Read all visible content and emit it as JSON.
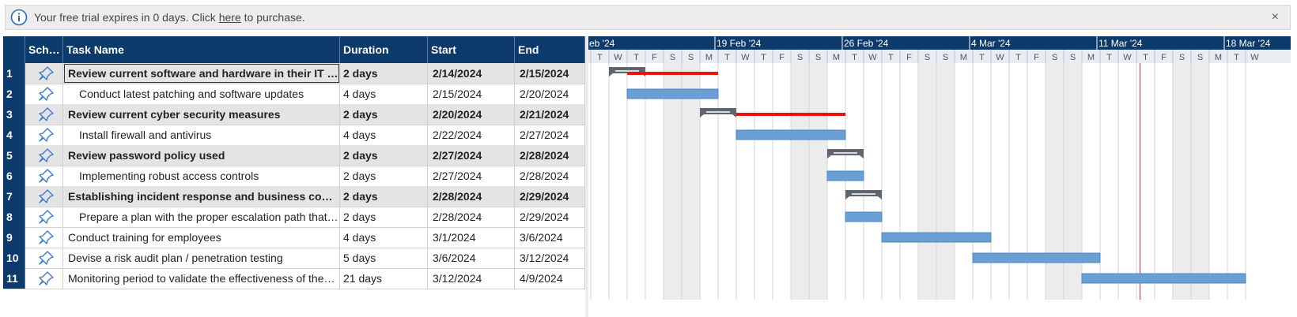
{
  "banner": {
    "text_before": "Your free trial expires in 0 days. Click ",
    "link": "here",
    "text_after": " to purchase.",
    "close": "×"
  },
  "columns": {
    "num": "",
    "sched": "Sch…",
    "name": "Task Name",
    "duration": "Duration",
    "start": "Start",
    "end": "End"
  },
  "tasks": [
    {
      "id": "1",
      "name": "Review current software and hardware in their IT i…",
      "duration": "2 days",
      "start": "2/14/2024",
      "end": "2/15/2024",
      "summary": true
    },
    {
      "id": "2",
      "name": "Conduct latest patching and software updates",
      "duration": "4 days",
      "start": "2/15/2024",
      "end": "2/20/2024",
      "summary": false
    },
    {
      "id": "3",
      "name": "Review current cyber security measures",
      "duration": "2 days",
      "start": "2/20/2024",
      "end": "2/21/2024",
      "summary": true
    },
    {
      "id": "4",
      "name": "Install firewall and antivirus",
      "duration": "4 days",
      "start": "2/22/2024",
      "end": "2/27/2024",
      "summary": false
    },
    {
      "id": "5",
      "name": "Review password policy used",
      "duration": "2 days",
      "start": "2/27/2024",
      "end": "2/28/2024",
      "summary": true
    },
    {
      "id": "6",
      "name": "Implementing robust access controls",
      "duration": "2 days",
      "start": "2/27/2024",
      "end": "2/28/2024",
      "summary": false
    },
    {
      "id": "7",
      "name": "Establishing incident response and business con…",
      "duration": "2 days",
      "start": "2/28/2024",
      "end": "2/29/2024",
      "summary": true
    },
    {
      "id": "8",
      "name": "Prepare a plan with the proper escalation path that…",
      "duration": "2 days",
      "start": "2/28/2024",
      "end": "2/29/2024",
      "summary": false
    },
    {
      "id": "9",
      "name": "Conduct training for employees",
      "duration": "4 days",
      "start": "3/1/2024",
      "end": "3/6/2024",
      "summary": false
    },
    {
      "id": "10",
      "name": "Devise a risk audit plan / penetration testing",
      "duration": "5 days",
      "start": "3/6/2024",
      "end": "3/12/2024",
      "summary": false
    },
    {
      "id": "11",
      "name": "Monitoring period to validate the effectiveness of the…",
      "duration": "21 days",
      "start": "3/12/2024",
      "end": "4/9/2024",
      "summary": false
    }
  ],
  "timeline": {
    "weeks": [
      "eb '24",
      "19 Feb '24",
      "26 Feb '24",
      "4 Mar '24",
      "11 Mar '24",
      "18 Mar '24"
    ],
    "days": [
      "T",
      "W",
      "T",
      "F",
      "S",
      "S",
      "M",
      "T",
      "W",
      "T",
      "F",
      "S",
      "S",
      "M",
      "T",
      "W",
      "T",
      "F",
      "S",
      "S",
      "M",
      "T",
      "W",
      "T",
      "F",
      "S",
      "S",
      "M",
      "T",
      "W",
      "T",
      "F",
      "S",
      "S",
      "M",
      "T",
      "W"
    ],
    "today_day_index": 30.2
  },
  "bars": [
    {
      "row": 0,
      "type": "summary",
      "start": 1,
      "end": 3
    },
    {
      "row": 0,
      "type": "critical",
      "start": 2,
      "end": 7
    },
    {
      "row": 1,
      "type": "task",
      "start": 2,
      "end": 7
    },
    {
      "row": 2,
      "type": "summary",
      "start": 6,
      "end": 8
    },
    {
      "row": 2,
      "type": "critical",
      "start": 8,
      "end": 14
    },
    {
      "row": 3,
      "type": "task",
      "start": 8,
      "end": 14
    },
    {
      "row": 4,
      "type": "summary",
      "start": 13,
      "end": 15
    },
    {
      "row": 5,
      "type": "task",
      "start": 13,
      "end": 15
    },
    {
      "row": 6,
      "type": "summary",
      "start": 14,
      "end": 16
    },
    {
      "row": 7,
      "type": "task",
      "start": 14,
      "end": 16
    },
    {
      "row": 8,
      "type": "task",
      "start": 16,
      "end": 22
    },
    {
      "row": 9,
      "type": "task",
      "start": 21,
      "end": 28
    },
    {
      "row": 10,
      "type": "task",
      "start": 27,
      "end": 36
    }
  ],
  "colors": {
    "header": "#0b3a6b",
    "task_bar": "#6a9fd4",
    "summary_bar": "#5f6670",
    "critical": "#ee1111",
    "today": "#cc2222",
    "weekend": "#ececec"
  }
}
